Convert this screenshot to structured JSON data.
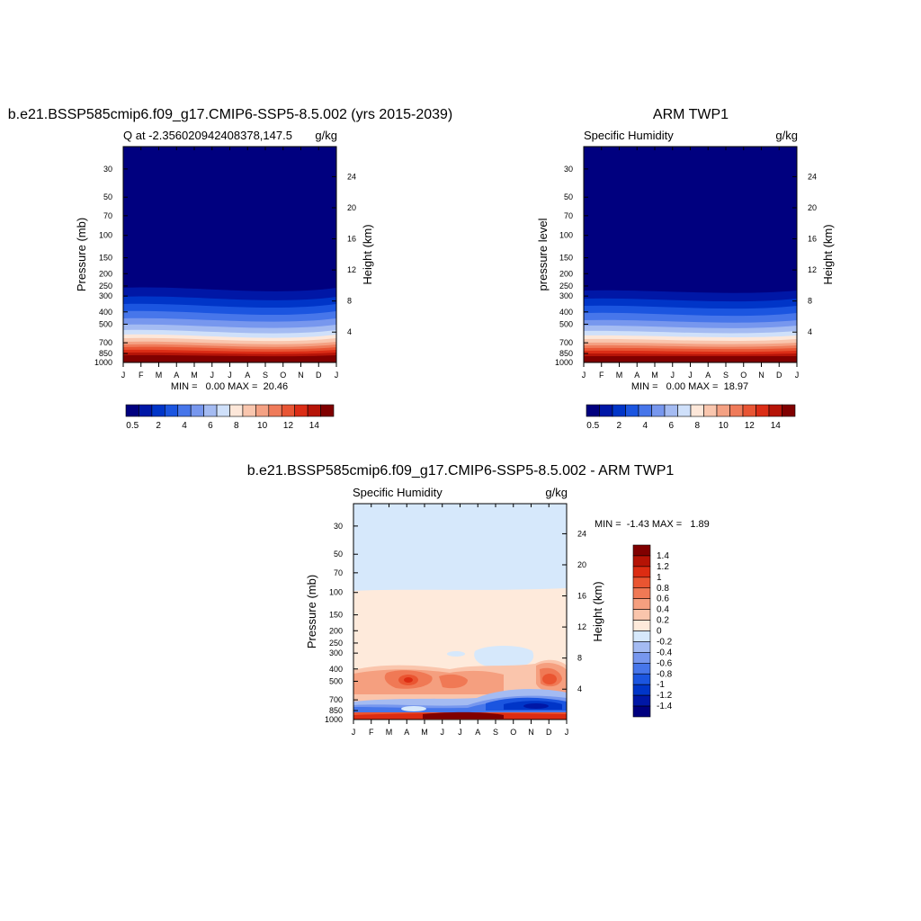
{
  "colormap_abs": [
    "#00007f",
    "#0017a6",
    "#0035c8",
    "#1b55e0",
    "#4776ea",
    "#7797ee",
    "#a4bbf2",
    "#cfe0fa",
    "#fde7d9",
    "#f9c6ae",
    "#f4a183",
    "#ef7b5a",
    "#e85534",
    "#db2d16",
    "#b61408",
    "#800000"
  ],
  "colormap_diff": [
    "#00007f",
    "#0017a6",
    "#0035c8",
    "#1b55e0",
    "#4776ea",
    "#7797ee",
    "#a4bbf2",
    "#d6e8fb",
    "#feeadb",
    "#fac5ac",
    "#f59f7f",
    "#f07955",
    "#ea5531",
    "#dc2c12",
    "#b51305",
    "#800000"
  ],
  "chart_data": [
    {
      "type": "contour",
      "title": "b.e21.BSSP585cmip6.f09_g17.CMIP6-SSP5-8.5.002 (yrs 2015-2039)",
      "left_string": "Q at -2.356020942408378,147.5",
      "right_string": "g/kg",
      "ylabel": "Pressure (mb)",
      "ylabel_right": "Height (km)",
      "x_ticks": [
        "J",
        "F",
        "M",
        "A",
        "M",
        "J",
        "J",
        "A",
        "S",
        "O",
        "N",
        "D",
        "J"
      ],
      "y_ticks": [
        "30",
        "50",
        "70",
        "100",
        "150",
        "200",
        "250",
        "300",
        "400",
        "500",
        "700",
        "850",
        "1000"
      ],
      "y_ticks_right": [
        "24",
        "20",
        "16",
        "12",
        "8",
        "4"
      ],
      "min_max": "MIN =   0.00 MAX =  20.46",
      "min": 0.0,
      "max": 20.46,
      "colorbar_labels": [
        "0.5",
        "2",
        "4",
        "6",
        "8",
        "10",
        "12",
        "14"
      ],
      "colorbar_orientation": "horizontal"
    },
    {
      "type": "contour",
      "title": "ARM TWP1",
      "left_string": "Specific Humidity",
      "right_string": "g/kg",
      "ylabel": "pressure level",
      "ylabel_right": "Height (km)",
      "x_ticks": [
        "J",
        "F",
        "M",
        "A",
        "M",
        "J",
        "J",
        "A",
        "S",
        "O",
        "N",
        "D",
        "J"
      ],
      "y_ticks": [
        "30",
        "50",
        "70",
        "100",
        "150",
        "200",
        "250",
        "300",
        "400",
        "500",
        "700",
        "850",
        "1000"
      ],
      "y_ticks_right": [
        "24",
        "20",
        "16",
        "12",
        "8",
        "4"
      ],
      "min_max": "MIN =   0.00 MAX =  18.97",
      "min": 0.0,
      "max": 18.97,
      "colorbar_labels": [
        "0.5",
        "2",
        "4",
        "6",
        "8",
        "10",
        "12",
        "14"
      ],
      "colorbar_orientation": "horizontal"
    },
    {
      "type": "contour",
      "title": "b.e21.BSSP585cmip6.f09_g17.CMIP6-SSP5-8.5.002 - ARM TWP1",
      "left_string": "Specific Humidity",
      "right_string": "g/kg",
      "ylabel": "Pressure (mb)",
      "ylabel_right": "Height (km)",
      "x_ticks": [
        "J",
        "F",
        "M",
        "A",
        "M",
        "J",
        "J",
        "A",
        "S",
        "O",
        "N",
        "D",
        "J"
      ],
      "y_ticks": [
        "30",
        "50",
        "70",
        "100",
        "150",
        "200",
        "250",
        "300",
        "400",
        "500",
        "700",
        "850",
        "1000"
      ],
      "y_ticks_right": [
        "24",
        "20",
        "16",
        "12",
        "8",
        "4"
      ],
      "min_max": "MIN =  -1.43 MAX =   1.89",
      "min": -1.43,
      "max": 1.89,
      "colorbar_labels": [
        "1.4",
        "1.2",
        "1",
        "0.8",
        "0.6",
        "0.4",
        "0.2",
        "0",
        "-0.2",
        "-0.4",
        "-0.6",
        "-0.8",
        "-1",
        "-1.2",
        "-1.4"
      ],
      "colorbar_orientation": "vertical"
    }
  ]
}
